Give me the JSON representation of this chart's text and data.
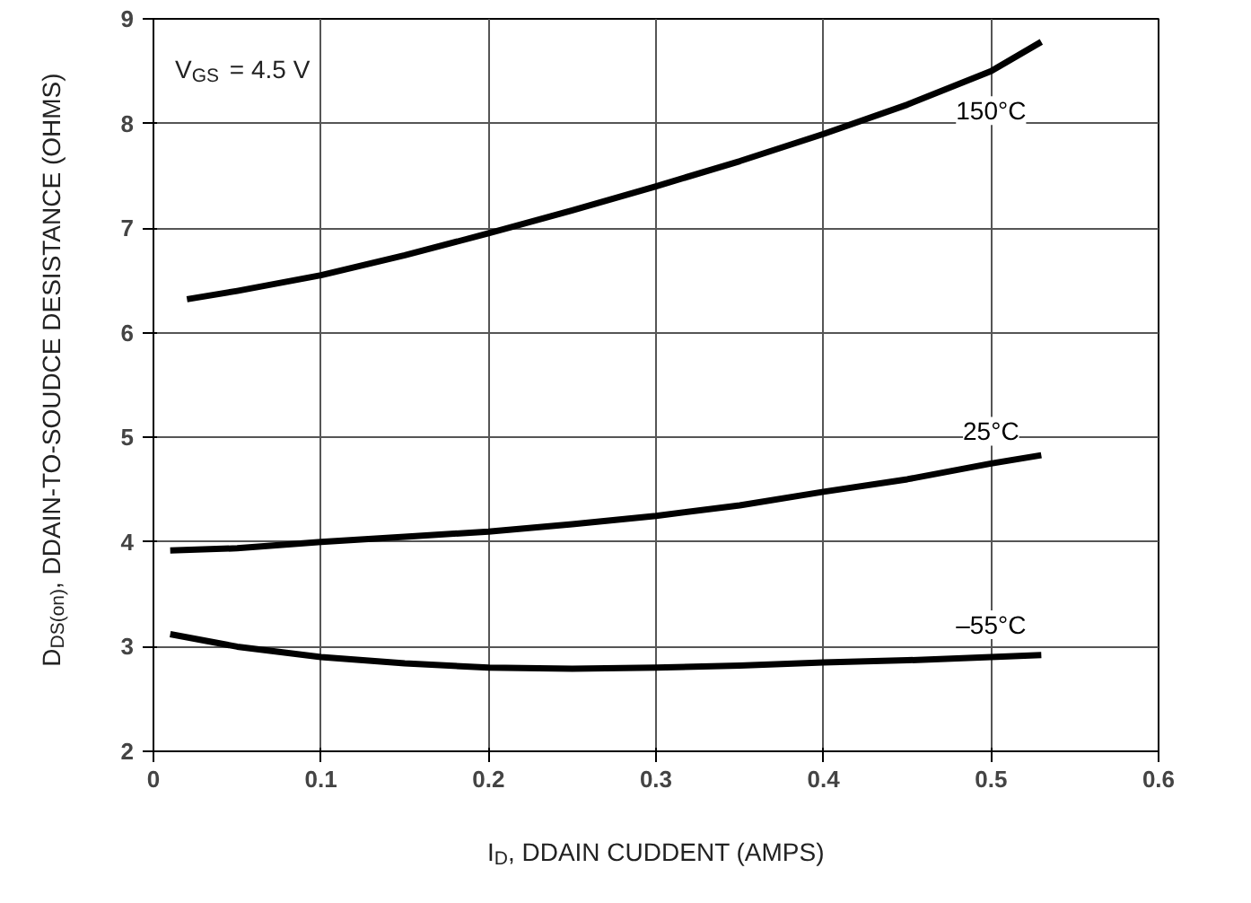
{
  "chart_data": {
    "type": "line",
    "xlabel": "I$_{D}$, DDAIN CUDDENT (AMPS)",
    "ylabel": "D$_{DS(on)}$, DDAIN-TO-SOUDCE DESISTANCE (OHMS)",
    "xlim": [
      0,
      0.6
    ],
    "ylim": [
      2,
      9
    ],
    "xticks": [
      0,
      0.1,
      0.2,
      0.3,
      0.4,
      0.5,
      0.6
    ],
    "yticks": [
      2,
      3,
      4,
      5,
      6,
      7,
      8,
      9
    ],
    "grid": true,
    "legend": false,
    "marker": "none",
    "line_style": "solid",
    "annotations": [
      "V$_{GS}$ = 4.5  V"
    ],
    "series": [
      {
        "name": "150°C",
        "color": "#000000",
        "x": [
          0.02,
          0.05,
          0.1,
          0.15,
          0.2,
          0.25,
          0.3,
          0.35,
          0.4,
          0.45,
          0.5,
          0.53
        ],
        "values": [
          6.32,
          6.4,
          6.55,
          6.74,
          6.95,
          7.17,
          7.4,
          7.64,
          7.9,
          8.18,
          8.5,
          8.78
        ]
      },
      {
        "name": "25°C",
        "color": "#000000",
        "x": [
          0.01,
          0.05,
          0.1,
          0.15,
          0.2,
          0.25,
          0.3,
          0.35,
          0.4,
          0.45,
          0.5,
          0.53
        ],
        "values": [
          3.92,
          3.94,
          4.0,
          4.05,
          4.1,
          4.17,
          4.25,
          4.35,
          4.48,
          4.6,
          4.75,
          4.83
        ]
      },
      {
        "name": "–55°C",
        "color": "#000000",
        "x": [
          0.01,
          0.05,
          0.1,
          0.15,
          0.2,
          0.25,
          0.3,
          0.35,
          0.4,
          0.45,
          0.5,
          0.53
        ],
        "values": [
          3.12,
          3.0,
          2.9,
          2.84,
          2.8,
          2.79,
          2.8,
          2.82,
          2.85,
          2.87,
          2.9,
          2.92
        ]
      }
    ]
  }
}
